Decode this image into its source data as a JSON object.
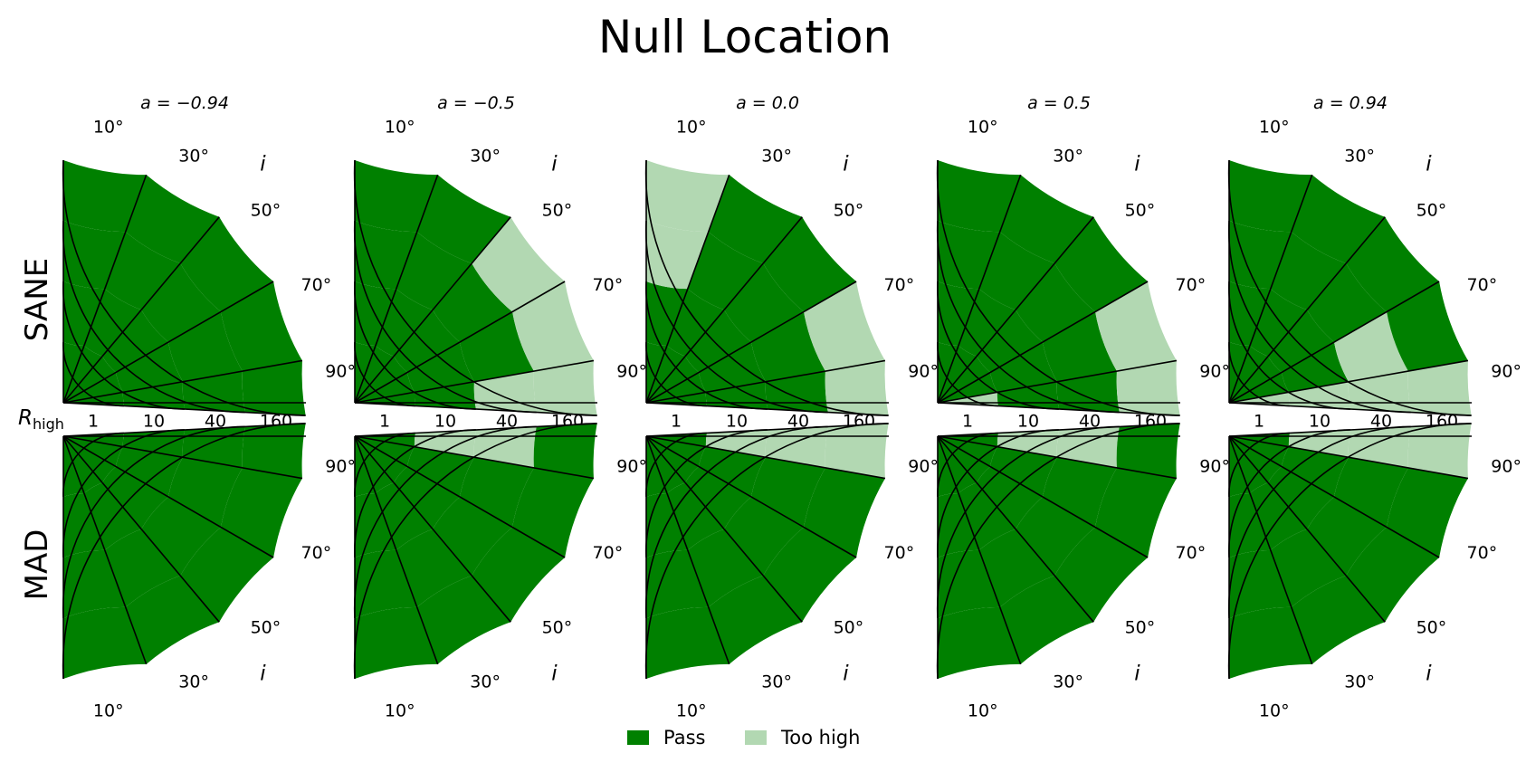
{
  "chart_data": {
    "type": "polar-grid",
    "title": "Null Location",
    "colors": {
      "Pass": "#008000",
      "Too high": "#b2d8b2"
    },
    "legend": {
      "placement": "bottom-center",
      "entries": [
        "Pass",
        "Too high"
      ]
    },
    "r_axis": {
      "label": "high",
      "label_prefix": "R",
      "ticks": [
        "1",
        "10",
        "40",
        "160"
      ]
    },
    "theta_axis": {
      "label": "i",
      "ticks": [
        "10°",
        "30°",
        "50°",
        "70°",
        "90°"
      ]
    },
    "spin_label_prefix": "a = ",
    "spins": [
      "−0.94",
      "−0.5",
      "0.0",
      "0.5",
      "0.94"
    ],
    "inclinations_deg": [
      10,
      30,
      50,
      70,
      90
    ],
    "rows": [
      {
        "name": "SANE",
        "panels": [
          [
            [
              "Pass",
              "Pass",
              "Pass",
              "Pass"
            ],
            [
              "Pass",
              "Pass",
              "Pass",
              "Pass"
            ],
            [
              "Pass",
              "Pass",
              "Pass",
              "Pass"
            ],
            [
              "Pass",
              "Pass",
              "Pass",
              "Pass"
            ],
            [
              "Pass",
              "Pass",
              "Pass",
              "Pass"
            ]
          ],
          [
            [
              "Pass",
              "Pass",
              "Pass",
              "Pass"
            ],
            [
              "Pass",
              "Pass",
              "Pass",
              "Pass"
            ],
            [
              "Pass",
              "Pass",
              "Pass",
              "Too high"
            ],
            [
              "Pass",
              "Pass",
              "Pass",
              "Too high"
            ],
            [
              "Pass",
              "Pass",
              "Too high",
              "Too high"
            ]
          ],
          [
            [
              "Pass",
              "Pass",
              "Too high",
              "Too high"
            ],
            [
              "Pass",
              "Pass",
              "Pass",
              "Pass"
            ],
            [
              "Pass",
              "Pass",
              "Pass",
              "Pass"
            ],
            [
              "Pass",
              "Pass",
              "Pass",
              "Too high"
            ],
            [
              "Pass",
              "Pass",
              "Pass",
              "Too high"
            ]
          ],
          [
            [
              "Pass",
              "Pass",
              "Pass",
              "Pass"
            ],
            [
              "Pass",
              "Pass",
              "Pass",
              "Pass"
            ],
            [
              "Pass",
              "Pass",
              "Pass",
              "Pass"
            ],
            [
              "Pass",
              "Pass",
              "Pass",
              "Too high"
            ],
            [
              "Too high",
              "Pass",
              "Pass",
              "Too high"
            ]
          ],
          [
            [
              "Pass",
              "Pass",
              "Pass",
              "Pass"
            ],
            [
              "Pass",
              "Pass",
              "Pass",
              "Pass"
            ],
            [
              "Pass",
              "Pass",
              "Pass",
              "Pass"
            ],
            [
              "Pass",
              "Pass",
              "Too high",
              "Pass"
            ],
            [
              "Too high",
              "Too high",
              "Too high",
              "Too high"
            ]
          ]
        ]
      },
      {
        "name": "MAD",
        "panels": [
          [
            [
              "Pass",
              "Pass",
              "Pass",
              "Pass"
            ],
            [
              "Pass",
              "Pass",
              "Pass",
              "Pass"
            ],
            [
              "Pass",
              "Pass",
              "Pass",
              "Pass"
            ],
            [
              "Pass",
              "Pass",
              "Pass",
              "Pass"
            ],
            [
              "Pass",
              "Pass",
              "Pass",
              "Pass"
            ]
          ],
          [
            [
              "Pass",
              "Pass",
              "Pass",
              "Pass"
            ],
            [
              "Pass",
              "Pass",
              "Pass",
              "Pass"
            ],
            [
              "Pass",
              "Pass",
              "Pass",
              "Pass"
            ],
            [
              "Pass",
              "Pass",
              "Pass",
              "Pass"
            ],
            [
              "Pass",
              "Too high",
              "Too high",
              "Pass"
            ]
          ],
          [
            [
              "Pass",
              "Pass",
              "Pass",
              "Pass"
            ],
            [
              "Pass",
              "Pass",
              "Pass",
              "Pass"
            ],
            [
              "Pass",
              "Pass",
              "Pass",
              "Pass"
            ],
            [
              "Pass",
              "Pass",
              "Pass",
              "Pass"
            ],
            [
              "Pass",
              "Too high",
              "Too high",
              "Too high"
            ]
          ],
          [
            [
              "Pass",
              "Pass",
              "Pass",
              "Pass"
            ],
            [
              "Pass",
              "Pass",
              "Pass",
              "Pass"
            ],
            [
              "Pass",
              "Pass",
              "Pass",
              "Pass"
            ],
            [
              "Pass",
              "Pass",
              "Pass",
              "Pass"
            ],
            [
              "Pass",
              "Too high",
              "Too high",
              "Pass"
            ]
          ],
          [
            [
              "Pass",
              "Pass",
              "Pass",
              "Pass"
            ],
            [
              "Pass",
              "Pass",
              "Pass",
              "Pass"
            ],
            [
              "Pass",
              "Pass",
              "Pass",
              "Pass"
            ],
            [
              "Pass",
              "Pass",
              "Pass",
              "Pass"
            ],
            [
              "Pass",
              "Too high",
              "Too high",
              "Too high"
            ]
          ]
        ]
      }
    ]
  }
}
